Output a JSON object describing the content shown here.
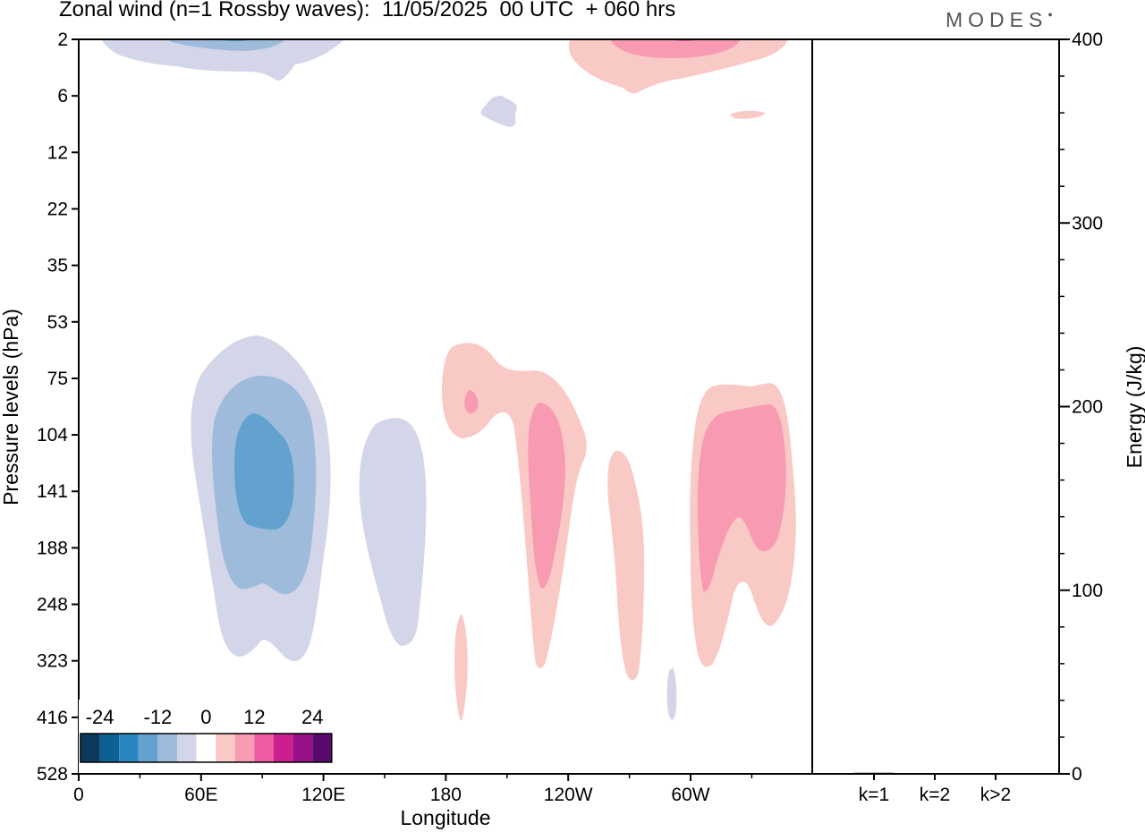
{
  "header": {
    "title": "Zonal wind (n=1 Rossby waves):  11/05/2025  00 UTC  + 060 hrs",
    "brand": "MODES"
  },
  "chart_data": [
    {
      "type": "heatmap",
      "title": "Zonal wind (n=1 Rossby waves):  11/05/2025  00 UTC  + 060 hrs",
      "xlabel": "Longitude",
      "ylabel": "Pressure levels (hPa)",
      "x_ticks": [
        "0",
        "60E",
        "120E",
        "180",
        "120W",
        "60W"
      ],
      "x_tick_values": [
        0,
        60,
        120,
        180,
        240,
        300
      ],
      "xlim": [
        0,
        360
      ],
      "y_ticks": [
        "2",
        "6",
        "12",
        "22",
        "35",
        "53",
        "75",
        "104",
        "141",
        "188",
        "248",
        "323",
        "416",
        "528"
      ],
      "colorbar": {
        "labels": [
          "-24",
          "-12",
          "0",
          "12",
          "24"
        ],
        "label_values": [
          -24,
          -12,
          0,
          12,
          24
        ],
        "levels": [
          -24,
          -20,
          -16,
          -12,
          -8,
          -4,
          4,
          8,
          12,
          16,
          20,
          24
        ],
        "colors": [
          "#0b3a5c",
          "#0e5f93",
          "#2a86bf",
          "#63a2cf",
          "#9fbbdb",
          "#d3d5e8",
          "#ffffff",
          "#f9c9c5",
          "#f79ab2",
          "#ef5aa2",
          "#cc1f8f",
          "#961188",
          "#5a0a6c"
        ]
      },
      "features": [
        {
          "sign": "negative",
          "peak": -12,
          "lon": 90,
          "level": 141
        },
        {
          "sign": "negative",
          "peak": -4,
          "lon": 155,
          "level": 141
        },
        {
          "sign": "negative",
          "peak": -8,
          "lon": 70,
          "level": 2
        },
        {
          "sign": "negative",
          "peak": -4,
          "lon": 200,
          "level": 6
        },
        {
          "sign": "negative",
          "peak": -4,
          "lon": 291,
          "level": 416
        },
        {
          "sign": "positive",
          "peak": 8,
          "lon": 230,
          "level": 141
        },
        {
          "sign": "positive",
          "peak": 12,
          "lon": 192,
          "level": 75
        },
        {
          "sign": "positive",
          "peak": 4,
          "lon": 265,
          "level": 188
        },
        {
          "sign": "positive",
          "peak": 8,
          "lon": 345,
          "level": 141
        },
        {
          "sign": "positive",
          "peak": 4,
          "lon": 188,
          "level": 323
        },
        {
          "sign": "positive",
          "peak": 8,
          "lon": 308,
          "level": 2
        },
        {
          "sign": "positive",
          "peak": 4,
          "lon": 327,
          "level": 6
        }
      ]
    },
    {
      "type": "bar",
      "categories": [
        "k=1",
        "k=2",
        "k>2"
      ],
      "values": [
        0.6,
        0.4,
        0.2
      ],
      "ylabel": "Energy (J/kg)",
      "ylim": [
        0,
        400
      ],
      "y_ticks": [
        "0",
        "100",
        "200",
        "300",
        "400"
      ],
      "y_tick_values": [
        0,
        100,
        200,
        300,
        400
      ]
    }
  ]
}
